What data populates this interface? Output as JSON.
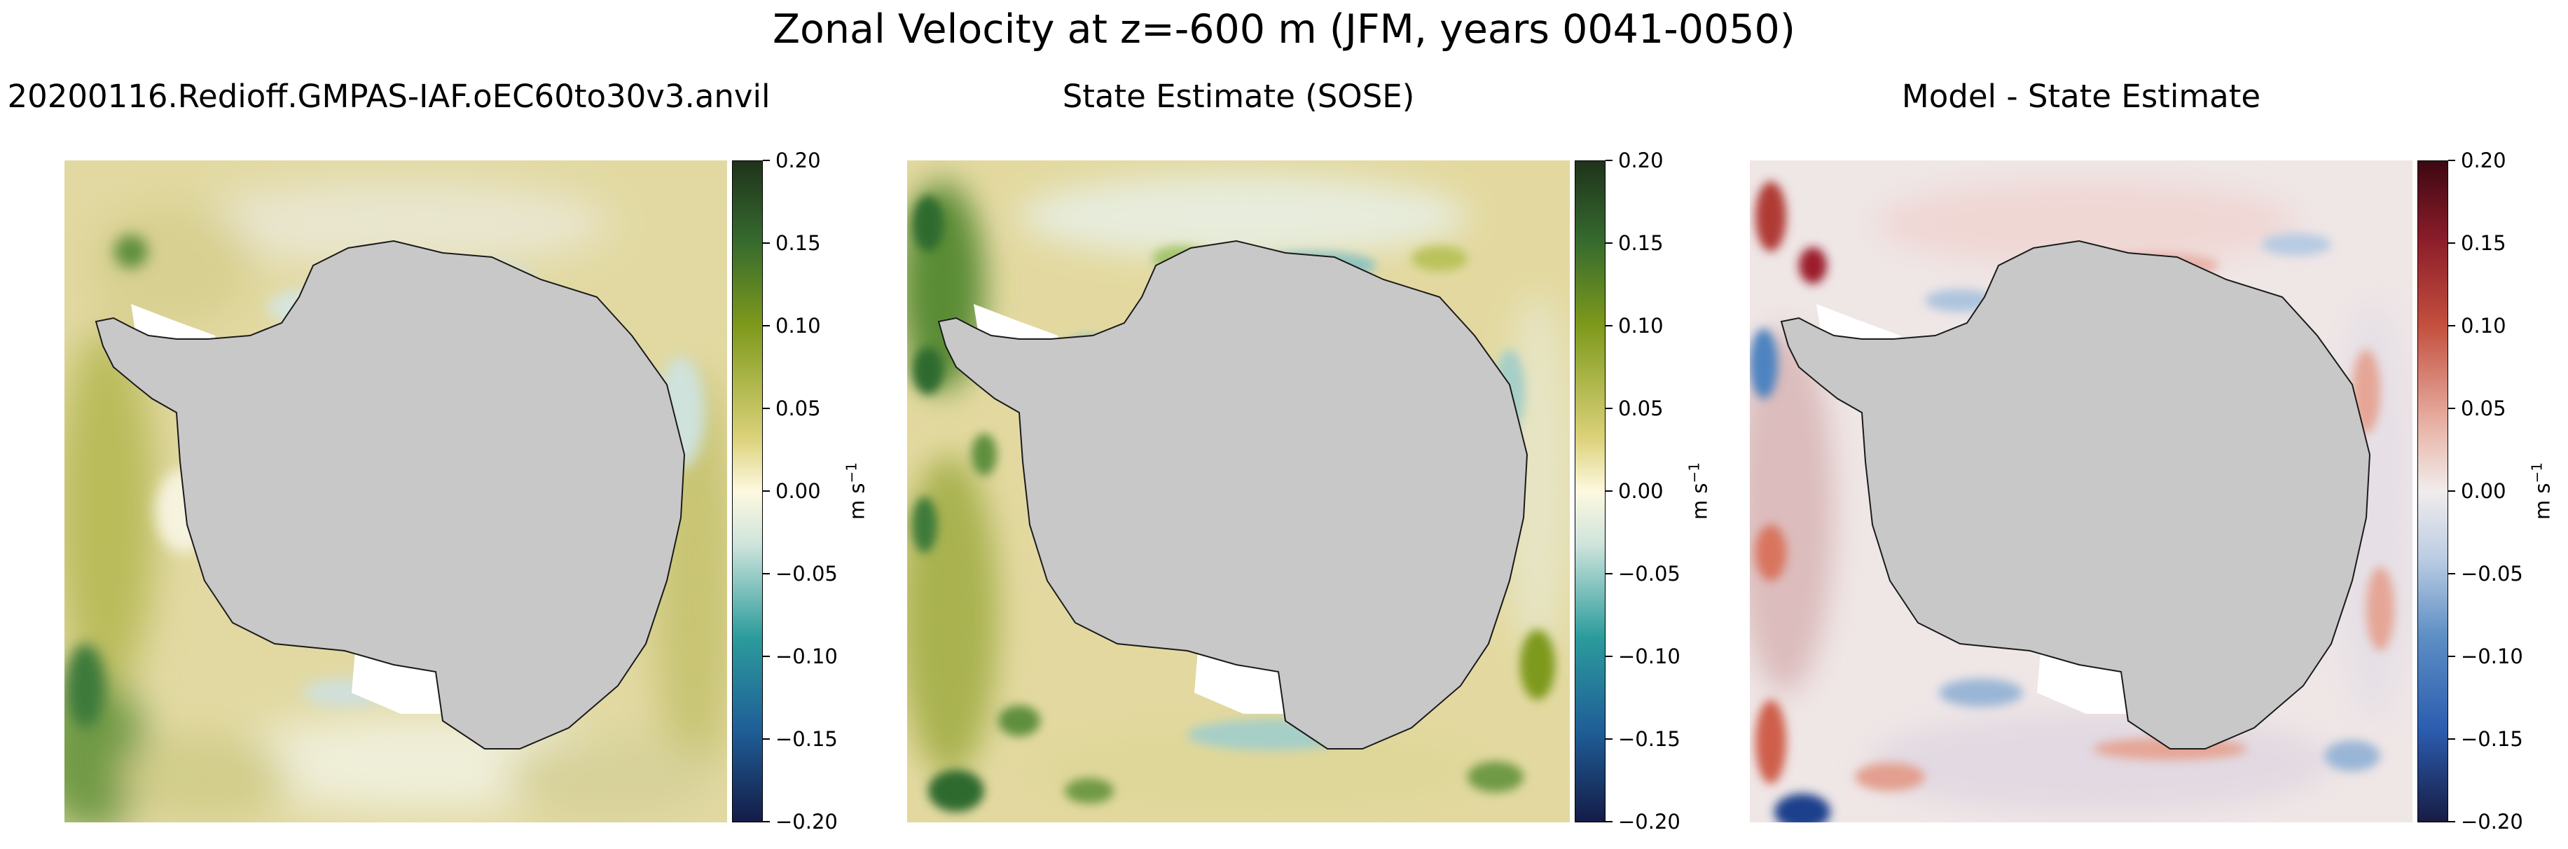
{
  "figure": {
    "title": "Zonal Velocity at z=-600 m (JFM, years 0041-0050)"
  },
  "panels": [
    {
      "title": "20200116.Redioff.GMPAS-IAF.oEC60to30v3.anvil",
      "colormap": "cmo.delta",
      "colorbar": {
        "ticks": [
          "0.20",
          "0.15",
          "0.10",
          "0.05",
          "0.00",
          "−0.05",
          "−0.10",
          "−0.15",
          "−0.20"
        ],
        "units": "m s",
        "units_exp": "−1"
      }
    },
    {
      "title": "State Estimate (SOSE)",
      "colormap": "cmo.delta",
      "colorbar": {
        "ticks": [
          "0.20",
          "0.15",
          "0.10",
          "0.05",
          "0.00",
          "−0.05",
          "−0.10",
          "−0.15",
          "−0.20"
        ],
        "units": "m s",
        "units_exp": "−1"
      }
    },
    {
      "title": "Model - State Estimate",
      "colormap": "cmo.balance",
      "colorbar": {
        "ticks": [
          "0.20",
          "0.15",
          "0.10",
          "0.05",
          "0.00",
          "−0.05",
          "−0.10",
          "−0.15",
          "−0.20"
        ],
        "units": "m s",
        "units_exp": "−1"
      }
    }
  ],
  "colors": {
    "land": "#c8c8c8",
    "coastline": "#1a1a1a",
    "delta_pos_max": "#1f331b",
    "delta_pos_mid": "#8fa012",
    "delta_zero": "#fdf9e0",
    "delta_neg_mid": "#2c9c9c",
    "delta_neg_max": "#141c48",
    "balance_pos_max": "#3d0812",
    "balance_pos_mid": "#d97e6d",
    "balance_zero": "#f1ecec",
    "balance_neg_mid": "#5d8ec4",
    "balance_neg_max": "#171c43"
  }
}
